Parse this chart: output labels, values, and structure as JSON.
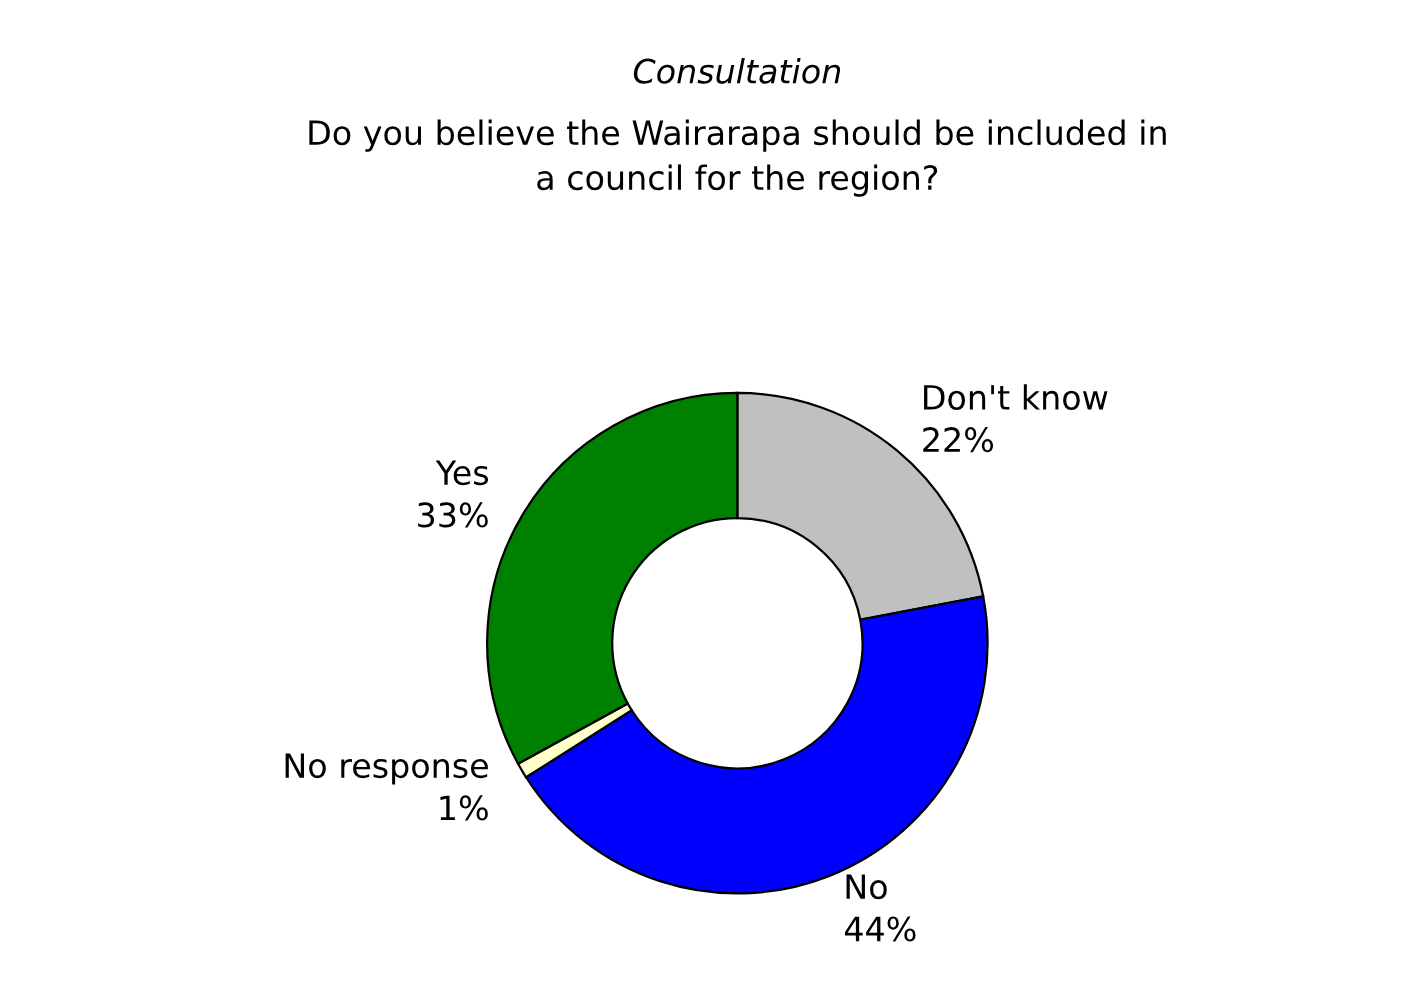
{
  "chart_data": {
    "type": "donut",
    "title": "Consultation",
    "subtitle": "Do you believe the Wairarapa should be included in\na council for the region?",
    "categories": [
      "Don't know",
      "No",
      "No response",
      "Yes"
    ],
    "values": [
      22,
      44,
      1,
      33
    ],
    "colors": [
      "#c0c0c0",
      "#0000ff",
      "#ffffcc",
      "#008000"
    ],
    "value_labels": [
      "22%",
      "44%",
      "1%",
      "33%"
    ]
  }
}
